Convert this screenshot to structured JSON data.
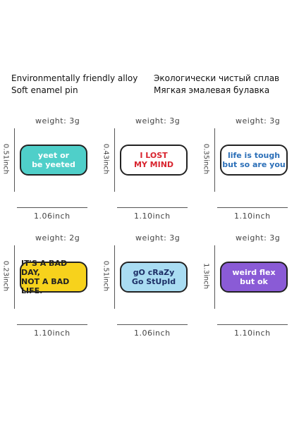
{
  "header": {
    "left": [
      "Environmentally friendly alloy",
      "Soft enamel pin"
    ],
    "right": [
      "Экологически чистый сплав",
      "Мягкая эмалевая булавка"
    ]
  },
  "items": [
    {
      "weight": "weight:  3g",
      "height": "0.51inch",
      "width": "1.06inch",
      "pin": [
        "yeet or",
        "be yeeted"
      ],
      "bg": "#4fcfc9",
      "fg": "#ffffff"
    },
    {
      "weight": "weight:  3g",
      "height": "0.43inch",
      "width": "1.10inch",
      "pin": [
        "I LOST",
        "MY MIND"
      ],
      "bg": "#ffffff",
      "fg": "#d8242e"
    },
    {
      "weight": "weight:  3g",
      "height": "0.35inch",
      "width": "1.10inch",
      "pin": [
        "life is tough",
        "but so are you"
      ],
      "bg": "#ffffff",
      "fg": "#2b6fb8"
    },
    {
      "weight": "weight:  2g",
      "height": "0.23inch",
      "width": "1.10inch",
      "pin": [
        "IT'S A BAD DAY,",
        "NOT A BAD LIFE."
      ],
      "bg": "#f7d21c",
      "fg": "#222222"
    },
    {
      "weight": "weight:  3g",
      "height": "0.51inch",
      "width": "1.06inch",
      "pin": [
        "gO cRaZy",
        "Go StUpId"
      ],
      "bg": "#a9dcf2",
      "fg": "#1d2f66"
    },
    {
      "weight": "weight:  3g",
      "height": "1.3inch",
      "width": "1.10inch",
      "pin": [
        "weird flex",
        "but ok"
      ],
      "bg": "#8a5bd6",
      "fg": "#ffffff"
    }
  ]
}
